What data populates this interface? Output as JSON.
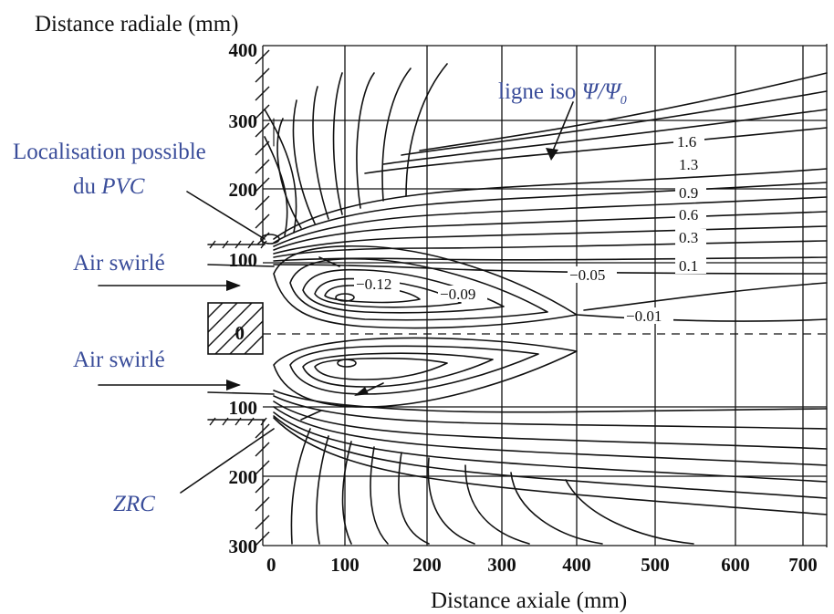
{
  "y_axis_title": "Distance radiale (mm)",
  "x_axis_title": "Distance axiale (mm)",
  "x_ticks": [
    "0",
    "100",
    "200",
    "300",
    "400",
    "500",
    "600",
    "700"
  ],
  "y_ticks_upper": [
    "400",
    "300",
    "200",
    "100",
    "0"
  ],
  "y_ticks_lower": [
    "100",
    "200",
    "300"
  ],
  "annotations": {
    "ligne_iso_text": "ligne iso ",
    "ligne_iso_symbol": "Ψ/Ψ",
    "ligne_iso_sub": "0",
    "pvc_line1": "Localisation possible",
    "pvc_line2_prefix": "du ",
    "pvc_line2_italic": "PVC",
    "air_swirl_top": "Air swirlé",
    "air_swirl_bottom": "Air swirlé",
    "zrc": "ZRC"
  },
  "iso_labels": [
    "1.6",
    "1.3",
    "0.9",
    "0.6",
    "0.3",
    "0.1",
    "−0.12",
    "−0.09",
    "−0.05",
    "−0.01"
  ],
  "colors": {
    "annotation": "#3a4d9a",
    "ink": "#111111"
  }
}
